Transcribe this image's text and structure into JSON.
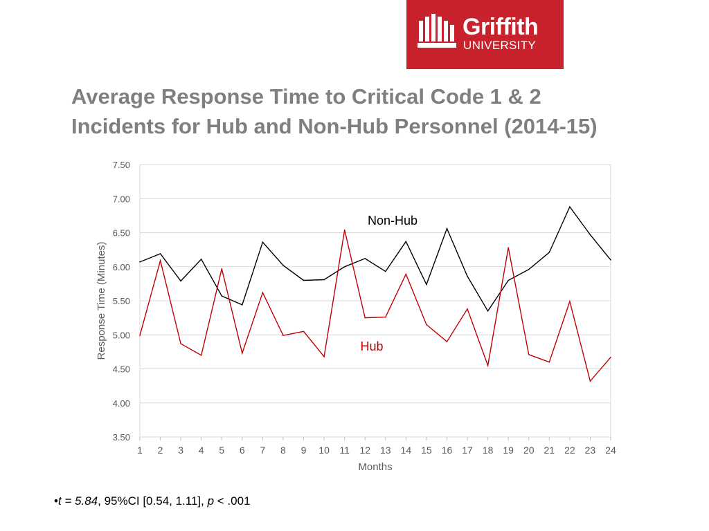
{
  "logo": {
    "line1": "Griffith",
    "line2": "UNIVERSITY",
    "color": "#c8232c"
  },
  "title": {
    "line1": "Average Response Time to Critical Code 1 & 2",
    "line2": "Incidents for Hub and Non-Hub Personnel (2014-15)"
  },
  "footnote": {
    "bullet": "•",
    "t_part": "t = 5.84",
    "middle": ", 95%CI [0.54, 1.11], ",
    "p_part": "p",
    "end": " < .001"
  },
  "chart_data": {
    "type": "line",
    "xlabel": "Months",
    "ylabel": "Response Time (Minutes)",
    "x": [
      1,
      2,
      3,
      4,
      5,
      6,
      7,
      8,
      9,
      10,
      11,
      12,
      13,
      14,
      15,
      16,
      17,
      18,
      19,
      20,
      21,
      22,
      23,
      24
    ],
    "ylim": [
      3.5,
      7.5
    ],
    "yticks": [
      "3.50",
      "4.00",
      "4.50",
      "5.00",
      "5.50",
      "6.00",
      "6.50",
      "7.00",
      "7.50"
    ],
    "grid": true,
    "series": [
      {
        "name": "Non-Hub",
        "color": "#000000",
        "values": [
          6.07,
          6.19,
          5.79,
          6.11,
          5.57,
          5.44,
          6.36,
          6.02,
          5.8,
          5.81,
          6.0,
          6.12,
          5.93,
          6.37,
          5.74,
          6.56,
          5.86,
          5.35,
          5.8,
          5.96,
          6.21,
          6.88,
          6.47,
          6.1
        ]
      },
      {
        "name": "Hub",
        "color": "#c00000",
        "values": [
          4.99,
          6.09,
          4.87,
          4.7,
          5.97,
          4.73,
          5.62,
          4.99,
          5.05,
          4.68,
          6.54,
          5.25,
          5.26,
          5.89,
          5.15,
          4.9,
          5.38,
          4.55,
          6.28,
          4.71,
          4.6,
          5.49,
          4.32,
          4.67
        ]
      }
    ]
  }
}
